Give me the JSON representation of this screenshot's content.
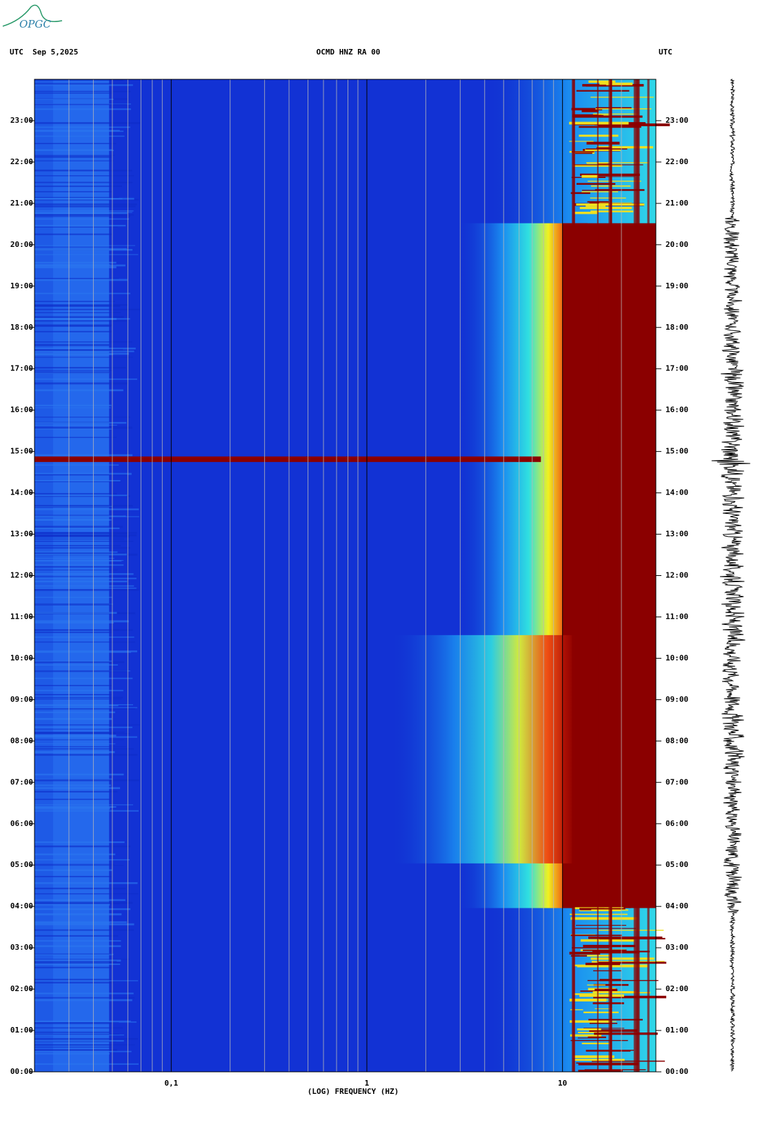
{
  "logo": "OPGC",
  "chart_data": {
    "type": "spectrogram",
    "title": "OCMD HNZ RA 00",
    "header_left": "UTC  Sep 5,2025",
    "header_right": "UTC",
    "xlabel": "(LOG) FREQUENCY (HZ)",
    "xlim": [
      0.02,
      30
    ],
    "xlog": true,
    "xticks": [
      {
        "value": 0.1,
        "label": "0,1"
      },
      1,
      10
    ],
    "minor_xticks": [
      0.03,
      0.04,
      0.05,
      0.06,
      0.07,
      0.08,
      0.09,
      0.2,
      0.3,
      0.4,
      0.5,
      0.6,
      0.7,
      0.8,
      0.9,
      2,
      3,
      4,
      5,
      6,
      7,
      8,
      9,
      20,
      30
    ],
    "ylim": [
      0,
      24
    ],
    "yticks": [
      {
        "value": 0,
        "label": "00:00"
      },
      {
        "value": 1,
        "label": "01:00"
      },
      {
        "value": 2,
        "label": "02:00"
      },
      {
        "value": 3,
        "label": "03:00"
      },
      {
        "value": 4,
        "label": "04:00"
      },
      {
        "value": 5,
        "label": "05:00"
      },
      {
        "value": 6,
        "label": "06:00"
      },
      {
        "value": 7,
        "label": "07:00"
      },
      {
        "value": 8,
        "label": "08:00"
      },
      {
        "value": 9,
        "label": "09:00"
      },
      {
        "value": 10,
        "label": "10:00"
      },
      {
        "value": 11,
        "label": "11:00"
      },
      {
        "value": 12,
        "label": "12:00"
      },
      {
        "value": 13,
        "label": "13:00"
      },
      {
        "value": 14,
        "label": "14:00"
      },
      {
        "value": 15,
        "label": "15:00"
      },
      {
        "value": 16,
        "label": "16:00"
      },
      {
        "value": 17,
        "label": "17:00"
      },
      {
        "value": 18,
        "label": "18:00"
      },
      {
        "value": 19,
        "label": "19:00"
      },
      {
        "value": 20,
        "label": "20:00"
      },
      {
        "value": 21,
        "label": "21:00"
      },
      {
        "value": 22,
        "label": "22:00"
      },
      {
        "value": 23,
        "label": "23:00"
      }
    ],
    "grid": true
  }
}
